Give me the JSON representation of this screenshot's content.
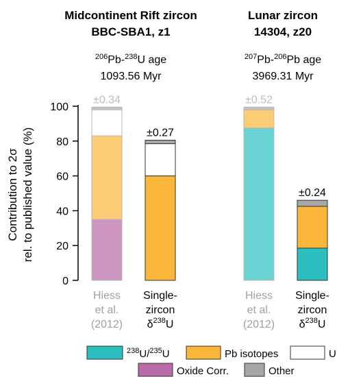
{
  "panels": [
    {
      "title_line1": "Midcontinent Rift zircon",
      "title_line2": "BBC-SBA1, z1",
      "age_label": {
        "pre1": "206",
        "mid": "Pb-",
        "pre2": "238",
        "post": "U age"
      },
      "age_value": "1093.56 Myr"
    },
    {
      "title_line1": "Lunar zircon",
      "title_line2": "14304, z20",
      "age_label": {
        "pre1": "207",
        "mid": "Pb-",
        "pre2": "206",
        "post": "Pb age"
      },
      "age_value": "3969.31 Myr"
    }
  ],
  "y_axis": {
    "label_line1": "Contribution to 2σ",
    "label_line2": "rel. to published value (%)",
    "ticks": [
      "0",
      "20",
      "40",
      "60",
      "80",
      "100"
    ]
  },
  "legend": {
    "u_ratio": {
      "sup1": "238",
      "mid": "U/",
      "sup2": "235",
      "post": "U"
    },
    "pb_isotopes": "Pb isotopes",
    "u_content": "U content",
    "oxide": "Oxide Corr.",
    "other": "Other"
  },
  "colors": {
    "u_ratio": "#2bbfbf",
    "pb_isotopes": "#fbb73a",
    "u_content": "#ffffff",
    "oxide": "#b86aa9",
    "other": "#a7a7a8",
    "faded_text": "#a0a0a0"
  },
  "chart_data": {
    "type": "bar",
    "stacked": true,
    "ylim": [
      0,
      100
    ],
    "ylabel": "Contribution to 2σ rel. to published value (%)",
    "bars": [
      {
        "panel": 0,
        "label": [
          "Hiess",
          "et al.",
          "(2012)"
        ],
        "faded": true,
        "uncertainty": "±0.34",
        "segments": [
          {
            "component": "Oxide Corr.",
            "value": 35
          },
          {
            "component": "Pb isotopes",
            "value": 48
          },
          {
            "component": "U content",
            "value": 15
          },
          {
            "component": "Other",
            "value": 1.5
          }
        ]
      },
      {
        "panel": 0,
        "label": [
          "Single-",
          "zircon",
          "δ238U"
        ],
        "faded": false,
        "uncertainty": "±0.27",
        "segments": [
          {
            "component": "Pb isotopes",
            "value": 60
          },
          {
            "component": "U content",
            "value": 18.5
          },
          {
            "component": "Other",
            "value": 2
          }
        ]
      },
      {
        "panel": 1,
        "label": [
          "Hiess",
          "et al.",
          "(2012)"
        ],
        "faded": true,
        "uncertainty": "±0.52",
        "segments": [
          {
            "component": "238U/235U",
            "value": 87.5
          },
          {
            "component": "Pb isotopes",
            "value": 10.5
          },
          {
            "component": "Other",
            "value": 1.5
          }
        ]
      },
      {
        "panel": 1,
        "label": [
          "Single-",
          "zircon",
          "δ238U"
        ],
        "faded": false,
        "uncertainty": "±0.24",
        "segments": [
          {
            "component": "238U/235U",
            "value": 18.5
          },
          {
            "component": "Pb isotopes",
            "value": 24
          },
          {
            "component": "Other",
            "value": 3.5
          }
        ]
      }
    ]
  }
}
